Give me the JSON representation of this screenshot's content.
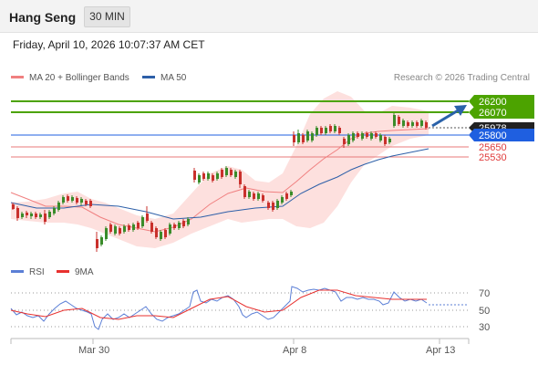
{
  "header": {
    "instrument": "Hang Seng",
    "interval_label": "30 MIN"
  },
  "timestamp": "Friday, April 10, 2026 10:07:37 AM CET",
  "legend": {
    "items": [
      {
        "label": "MA 20 + Bollinger Bands",
        "color": "#f08080"
      },
      {
        "label": "MA 50",
        "color": "#2d5fa8"
      }
    ],
    "copyright": "Research © 2026 Trading Central"
  },
  "price_levels": [
    {
      "value": "26200",
      "kind": "resistance",
      "color": "#4ca300"
    },
    {
      "value": "26070",
      "kind": "resistance",
      "color": "#4ca300"
    },
    {
      "value": "25978",
      "kind": "last",
      "color": "#222222"
    },
    {
      "value": "25800",
      "kind": "pivot",
      "color": "#1f5fe0"
    },
    {
      "value": "25650",
      "kind": "support",
      "color": "#e03c3c"
    },
    {
      "value": "25530",
      "kind": "support",
      "color": "#e03c3c"
    }
  ],
  "rsi_legend": {
    "items": [
      {
        "label": "RSI",
        "color": "#5b7fd6"
      },
      {
        "label": "9MA",
        "color": "#e8312f"
      }
    ]
  },
  "rsi_axis": [
    "70",
    "50",
    "30"
  ],
  "x_axis": [
    "Mar 30",
    "Apr 8",
    "Apr 13"
  ],
  "colors": {
    "up_candle": "#3a8c2a",
    "down_candle": "#c9302c",
    "band_fill": "#fde0de",
    "ma20": "#f08080",
    "ma50": "#2d5fa8"
  }
}
